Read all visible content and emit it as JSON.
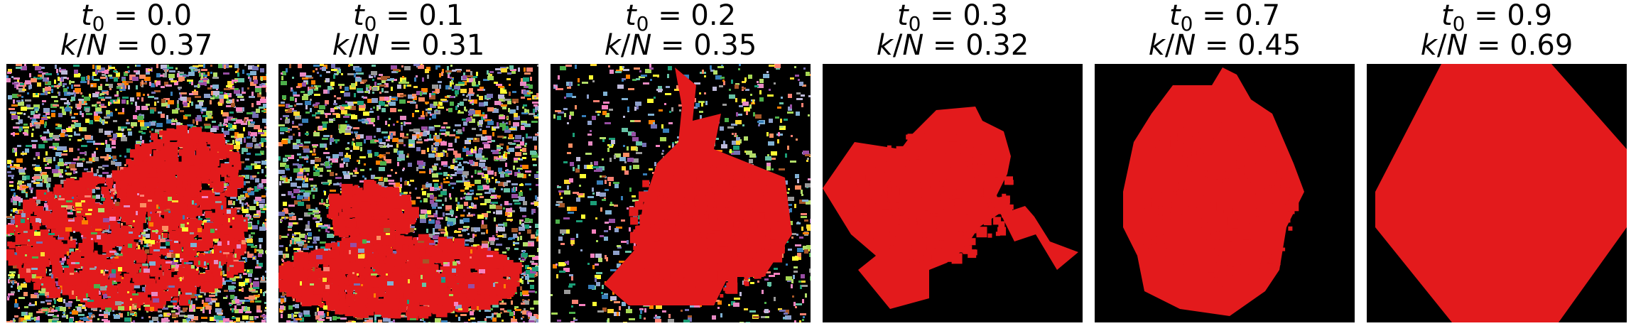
{
  "panels": [
    {
      "t0_label": "= 0.0",
      "k_label": "= 0.37",
      "t0": 0.0,
      "k_over_N": 0.37
    },
    {
      "t0_label": "= 0.1",
      "k_label": "= 0.31",
      "t0": 0.1,
      "k_over_N": 0.31
    },
    {
      "t0_label": "= 0.2",
      "k_label": "= 0.35",
      "t0": 0.2,
      "k_over_N": 0.35
    },
    {
      "t0_label": "= 0.3",
      "k_label": "= 0.32",
      "t0": 0.3,
      "k_over_N": 0.32
    },
    {
      "t0_label": "= 0.7",
      "k_label": "= 0.45",
      "t0": 0.7,
      "k_over_N": 0.45
    },
    {
      "t0_label": "= 0.9",
      "k_label": "= 0.69",
      "t0": 0.9,
      "k_over_N": 0.69
    }
  ],
  "colors": {
    "largest_cluster": "#e31a1c",
    "background": "#000000",
    "palette": [
      "#4daf4a",
      "#377eb8",
      "#984ea3",
      "#ff7f00",
      "#ffff33",
      "#a65628",
      "#f781bf",
      "#999999",
      "#66c2a5",
      "#fc8d62",
      "#8da0cb",
      "#e78ac3",
      "#a6d854",
      "#ffd92f",
      "#b3de69",
      "#80b1d3",
      "#bebada",
      "#fb8072",
      "#1b9e77",
      "#7570b3"
    ]
  }
}
